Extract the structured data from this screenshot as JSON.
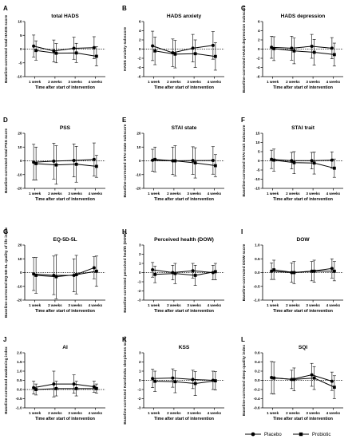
{
  "x_categories": [
    "1 week",
    "2 weeks",
    "3 weeks",
    "4 weeks"
  ],
  "legend": [
    "Placebo",
    "Probiotic"
  ],
  "chart_data": [
    {
      "type": "line",
      "letter": "A",
      "title": "total HADS",
      "ylabel": "Baseline-corrected total HADS score",
      "xlabel": "Time after start of intervention",
      "ylim": [
        -10,
        10
      ],
      "yticks": [
        -10,
        -5,
        0,
        5,
        10
      ],
      "tick_labels": [
        "-10",
        "-5",
        "0",
        "5",
        "10"
      ],
      "series": [
        {
          "name": "Placebo",
          "values": [
            1.1,
            -0.7,
            0.3,
            0.5
          ],
          "err": [
            4,
            4,
            4,
            4
          ]
        },
        {
          "name": "Probiotic",
          "values": [
            -0.5,
            -1.5,
            -1.4,
            -2.6
          ],
          "err": [
            3.5,
            3.5,
            3.5,
            3.5
          ]
        }
      ]
    },
    {
      "type": "line",
      "letter": "B",
      "title": "HADS anxiety",
      "ylabel": "HADS anxiety subscore",
      "xlabel": "Time after start of intervention",
      "ylim": [
        -6,
        6
      ],
      "yticks": [
        -6,
        -4,
        -2,
        0,
        2,
        4,
        6
      ],
      "tick_labels": [
        "-6",
        "-4",
        "-2",
        "0",
        "2",
        "4",
        "6"
      ],
      "series": [
        {
          "name": "Placebo",
          "values": [
            0.7,
            -0.8,
            0.2,
            0.8
          ],
          "err": [
            3.2,
            3,
            3,
            3
          ]
        },
        {
          "name": "Probiotic",
          "values": [
            -0.4,
            -1.1,
            -1,
            -1.6
          ],
          "err": [
            3,
            3,
            3,
            3
          ]
        }
      ]
    },
    {
      "type": "line",
      "letter": "C",
      "title": "HADS depression",
      "ylabel": "Baseline-corrected HADS depression subscore",
      "xlabel": "Time after start of intervention",
      "ylim": [
        -6,
        6
      ],
      "yticks": [
        -6,
        -4,
        -2,
        0,
        2,
        4,
        6
      ],
      "tick_labels": [
        "-6",
        "-4",
        "-2",
        "0",
        "2",
        "4",
        "6"
      ],
      "series": [
        {
          "name": "Placebo",
          "values": [
            0.4,
            0.2,
            0.6,
            0.2
          ],
          "err": [
            2.4,
            2.6,
            2.6,
            2.3
          ]
        },
        {
          "name": "Probiotic",
          "values": [
            0.1,
            -0.4,
            -0.7,
            -1.2
          ],
          "err": [
            2.6,
            2.8,
            2.8,
            2.5
          ]
        }
      ]
    },
    {
      "type": "line",
      "letter": "D",
      "title": "PSS",
      "ylabel": "Baseline-corrected total PSS score",
      "xlabel": "Time after start of intervention",
      "ylim": [
        -20,
        20
      ],
      "yticks": [
        -20,
        -10,
        0,
        10,
        20
      ],
      "tick_labels": [
        "-20",
        "-10",
        "0",
        "10",
        "20"
      ],
      "series": [
        {
          "name": "Placebo",
          "values": [
            -1,
            -0.2,
            0.3,
            1
          ],
          "err": [
            13,
            13,
            12,
            12
          ]
        },
        {
          "name": "Probiotic",
          "values": [
            -2,
            -3,
            -2.5,
            -4
          ],
          "err": [
            12,
            14,
            13,
            8
          ]
        }
      ]
    },
    {
      "type": "line",
      "letter": "E",
      "title": "STAI state",
      "ylabel": "Baseline-corrected STAI state subscore",
      "xlabel": "Time after start of intervention",
      "ylim": [
        -20,
        20
      ],
      "yticks": [
        -20,
        -10,
        0,
        10,
        20
      ],
      "tick_labels": [
        "-20",
        "-10",
        "0",
        "10",
        "20"
      ],
      "series": [
        {
          "name": "Placebo",
          "values": [
            0.4,
            0,
            0.2,
            0.3
          ],
          "err": [
            8,
            10,
            10,
            10
          ]
        },
        {
          "name": "Probiotic",
          "values": [
            1,
            0,
            -1.5,
            -3.5
          ],
          "err": [
            9,
            11,
            11,
            8
          ]
        }
      ]
    },
    {
      "type": "line",
      "letter": "F",
      "title": "STAI trait",
      "ylabel": "Baseline-corrected STAI trait subscore",
      "xlabel": "Time after start of intervention",
      "ylim": [
        -15,
        15
      ],
      "yticks": [
        -15,
        -10,
        -5,
        0,
        5,
        10,
        15
      ],
      "tick_labels": [
        "-15",
        "-10",
        "-5",
        "0",
        "5",
        "10",
        "15"
      ],
      "series": [
        {
          "name": "Placebo",
          "values": [
            0.8,
            0.1,
            0.1,
            0.4
          ],
          "err": [
            5,
            4.5,
            4.5,
            4.5
          ]
        },
        {
          "name": "Probiotic",
          "values": [
            0.4,
            -1,
            -1.2,
            -4
          ],
          "err": [
            6,
            6,
            6,
            5
          ]
        }
      ]
    },
    {
      "type": "line",
      "letter": "G",
      "title": "EQ-5D-5L",
      "ylabel": "Baseline-corrected EQ-5D-5L quality of life index",
      "xlabel": "Time after start of intervention",
      "ylim": [
        -20,
        20
      ],
      "yticks": [
        -20,
        -10,
        0,
        10,
        20
      ],
      "tick_labels": [
        "-20",
        "-10",
        "0",
        "10",
        "20"
      ],
      "series": [
        {
          "name": "Placebo",
          "values": [
            -1,
            -2,
            -2,
            3.5
          ],
          "err": [
            12,
            14,
            12,
            8
          ]
        },
        {
          "name": "Probiotic",
          "values": [
            -2,
            -3,
            -1.5,
            1
          ],
          "err": [
            13,
            16,
            14,
            11
          ]
        }
      ]
    },
    {
      "type": "line",
      "letter": "H",
      "title": "Perceived health (DOW)",
      "ylabel": "Baseline-corrected perceived health (DOW)",
      "xlabel": "Time after start of intervention",
      "ylim": [
        -3,
        3
      ],
      "yticks": [
        -3,
        -2,
        -1,
        0,
        1,
        2,
        3
      ],
      "tick_labels": [
        "-3",
        "-2",
        "-1",
        "0",
        "1",
        "2",
        "3"
      ],
      "series": [
        {
          "name": "Placebo",
          "values": [
            0.3,
            0,
            0.2,
            0
          ],
          "err": [
            0.8,
            0.8,
            0.8,
            0.8
          ]
        },
        {
          "name": "Probiotic",
          "values": [
            -0.2,
            -0.1,
            -0.3,
            0.1
          ],
          "err": [
            0.9,
            1.1,
            1.1,
            0.9
          ]
        }
      ]
    },
    {
      "type": "line",
      "letter": "I",
      "title": "DOW",
      "ylabel": "Baseline-corrected DOW score",
      "xlabel": "Time after start of intervention",
      "ylim": [
        -1,
        1
      ],
      "yticks": [
        -1,
        -0.5,
        0,
        0.5,
        1
      ],
      "tick_labels": [
        "-1.0",
        "-0.5",
        "0.0",
        "0.5",
        "1.0"
      ],
      "series": [
        {
          "name": "Placebo",
          "values": [
            0.05,
            0,
            0.05,
            0.15
          ],
          "err": [
            0.3,
            0.35,
            0.35,
            0.35
          ]
        },
        {
          "name": "Probiotic",
          "values": [
            0.1,
            0,
            0.05,
            0.05
          ],
          "err": [
            0.35,
            0.4,
            0.4,
            0.35
          ]
        }
      ]
    },
    {
      "type": "line",
      "letter": "J",
      "title": "AI",
      "ylabel": "Baseline-corrected awakening index",
      "xlabel": "Time after start of intervention",
      "ylim": [
        -1,
        2
      ],
      "yticks": [
        -1,
        -0.5,
        0,
        0.5,
        1,
        1.5,
        2
      ],
      "tick_labels": [
        "-1.0",
        "-0.5",
        "0.0",
        "0.5",
        "1.0",
        "1.5",
        "2.0"
      ],
      "series": [
        {
          "name": "Placebo",
          "values": [
            0.1,
            0.3,
            0.3,
            0.15
          ],
          "err": [
            0.35,
            0.7,
            0.5,
            0.3
          ]
        },
        {
          "name": "Probiotic",
          "values": [
            0,
            0.05,
            0.05,
            0.05
          ],
          "err": [
            0.3,
            0.4,
            0.4,
            0.25
          ]
        }
      ]
    },
    {
      "type": "line",
      "letter": "K",
      "title": "KSS",
      "ylabel": "Baseline-corrected Karolinska sleepiness scale",
      "xlabel": "Time after start of intervention",
      "ylim": [
        -3,
        3
      ],
      "yticks": [
        -3,
        -2,
        -1,
        0,
        1,
        2,
        3
      ],
      "tick_labels": [
        "-3",
        "-2",
        "-1",
        "0",
        "1",
        "2",
        "3"
      ],
      "series": [
        {
          "name": "Placebo",
          "values": [
            0.2,
            0.25,
            0.1,
            0
          ],
          "err": [
            1,
            1,
            1,
            1
          ]
        },
        {
          "name": "Probiotic",
          "values": [
            -0.1,
            -0.15,
            -0.35,
            -0.05
          ],
          "err": [
            1.1,
            1.2,
            1.3,
            1
          ]
        }
      ]
    },
    {
      "type": "line",
      "letter": "L",
      "title": "SQI",
      "ylabel": "Baseline-corrected sleep quality index",
      "xlabel": "Time after start of intervention",
      "ylim": [
        -0.6,
        0.6
      ],
      "yticks": [
        -0.6,
        -0.4,
        -0.2,
        0,
        0.2,
        0.4,
        0.6
      ],
      "tick_labels": [
        "-0.6",
        "-0.4",
        "-0.2",
        "0.0",
        "0.2",
        "0.4",
        "0.6"
      ],
      "series": [
        {
          "name": "Placebo",
          "values": [
            0.06,
            0.02,
            0.12,
            -0.02
          ],
          "err": [
            0.35,
            0.2,
            0.25,
            0.2
          ]
        },
        {
          "name": "Probiotic",
          "values": [
            0.05,
            0.02,
            0.05,
            -0.15
          ],
          "err": [
            0.35,
            0.25,
            0.25,
            0.25
          ]
        }
      ]
    }
  ]
}
